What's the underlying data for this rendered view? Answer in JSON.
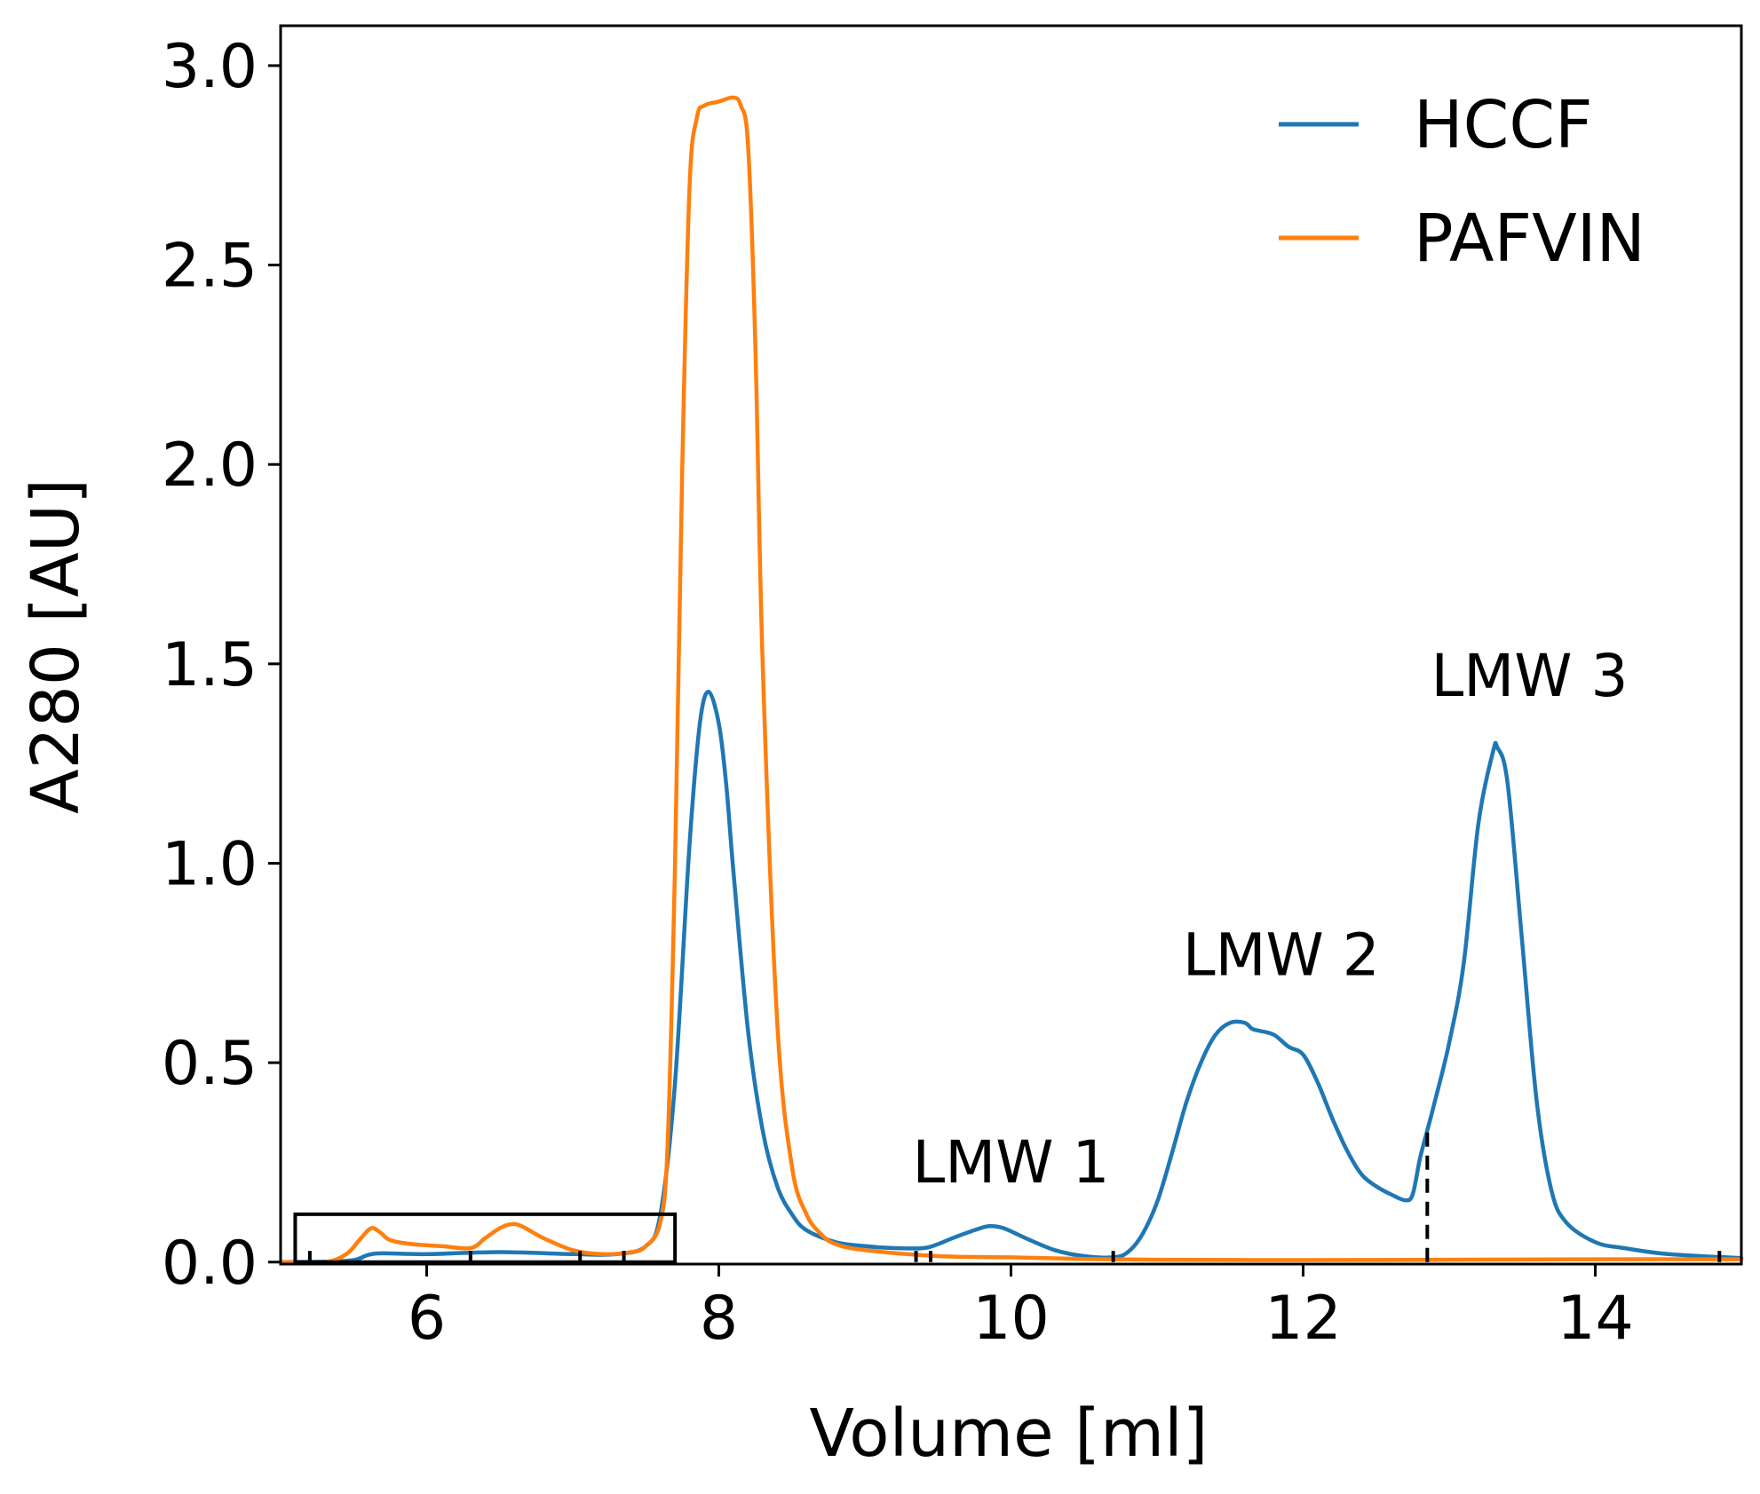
{
  "chart_data": {
    "type": "line",
    "xlabel": "Volume [ml]",
    "ylabel": "A280 [AU]",
    "xlim": [
      5.0,
      15.0
    ],
    "ylim": [
      -0.005,
      3.1
    ],
    "xticks": [
      6,
      8,
      10,
      12,
      14
    ],
    "xtick_labels": [
      "6",
      "8",
      "10",
      "12",
      "14"
    ],
    "yticks": [
      0.0,
      0.5,
      1.0,
      1.5,
      2.0,
      2.5,
      3.0
    ],
    "ytick_labels": [
      "0.0",
      "0.5",
      "1.0",
      "1.5",
      "2.0",
      "2.5",
      "3.0"
    ],
    "grid": false,
    "legend_position": "top-right",
    "series": [
      {
        "name": "HCCF",
        "color": "#1f77b4",
        "x": [
          5.0,
          5.3,
          5.5,
          5.6,
          5.7,
          6.0,
          6.5,
          7.0,
          7.3,
          7.5,
          7.6,
          7.7,
          7.8,
          7.87,
          7.93,
          8.0,
          8.05,
          8.1,
          8.2,
          8.3,
          8.4,
          8.5,
          8.6,
          8.8,
          9.0,
          9.2,
          9.4,
          9.5,
          9.6,
          9.75,
          9.85,
          9.95,
          10.1,
          10.3,
          10.5,
          10.7,
          10.8,
          10.9,
          11.0,
          11.1,
          11.2,
          11.3,
          11.4,
          11.5,
          11.6,
          11.65,
          11.7,
          11.8,
          11.9,
          12.0,
          12.1,
          12.2,
          12.3,
          12.4,
          12.5,
          12.6,
          12.7,
          12.75,
          12.8,
          12.85,
          12.9,
          13.0,
          13.1,
          13.2,
          13.3,
          13.33,
          13.4,
          13.5,
          13.6,
          13.7,
          13.8,
          14.0,
          14.2,
          14.5,
          15.0
        ],
        "y": [
          0.0,
          0.001,
          0.005,
          0.018,
          0.022,
          0.02,
          0.025,
          0.02,
          0.02,
          0.04,
          0.12,
          0.45,
          1.05,
          1.35,
          1.43,
          1.35,
          1.2,
          0.98,
          0.58,
          0.33,
          0.19,
          0.12,
          0.08,
          0.05,
          0.04,
          0.035,
          0.035,
          0.045,
          0.06,
          0.08,
          0.09,
          0.085,
          0.06,
          0.03,
          0.015,
          0.012,
          0.025,
          0.07,
          0.15,
          0.27,
          0.4,
          0.5,
          0.57,
          0.6,
          0.6,
          0.585,
          0.58,
          0.57,
          0.54,
          0.52,
          0.45,
          0.36,
          0.28,
          0.22,
          0.19,
          0.17,
          0.155,
          0.17,
          0.26,
          0.33,
          0.4,
          0.55,
          0.75,
          1.1,
          1.28,
          1.29,
          1.2,
          0.8,
          0.4,
          0.18,
          0.1,
          0.05,
          0.035,
          0.02,
          0.01
        ]
      },
      {
        "name": "PAFVIN",
        "color": "#ff7f0e",
        "x": [
          5.0,
          5.3,
          5.45,
          5.55,
          5.62,
          5.68,
          5.75,
          5.9,
          6.1,
          6.3,
          6.4,
          6.5,
          6.58,
          6.65,
          6.8,
          7.0,
          7.2,
          7.4,
          7.5,
          7.6,
          7.65,
          7.7,
          7.75,
          7.8,
          7.85,
          7.9,
          8.0,
          8.1,
          8.15,
          8.2,
          8.25,
          8.3,
          8.4,
          8.5,
          8.6,
          8.7,
          8.8,
          9.0,
          9.5,
          10.0,
          10.5,
          11.0,
          12.0,
          13.0,
          14.0,
          15.0
        ],
        "y": [
          0.0,
          0.0,
          0.02,
          0.06,
          0.085,
          0.075,
          0.055,
          0.045,
          0.04,
          0.035,
          0.06,
          0.085,
          0.095,
          0.09,
          0.06,
          0.03,
          0.02,
          0.025,
          0.04,
          0.1,
          0.3,
          1.0,
          2.0,
          2.7,
          2.87,
          2.9,
          2.91,
          2.92,
          2.9,
          2.8,
          2.3,
          1.5,
          0.6,
          0.24,
          0.12,
          0.07,
          0.045,
          0.03,
          0.015,
          0.012,
          0.008,
          0.006,
          0.005,
          0.006,
          0.007,
          0.007
        ]
      }
    ],
    "annotations": [
      {
        "text": "LMW 1",
        "x": 10.0,
        "y": 0.2
      },
      {
        "text": "LMW 2",
        "x": 11.85,
        "y": 0.72
      },
      {
        "text": "LMW 3",
        "x": 13.55,
        "y": 1.42
      }
    ],
    "dashed_lines": [
      {
        "x": 12.85,
        "y0": 0.0,
        "y1": 0.33
      }
    ],
    "fraction_ticks": [
      5.2,
      6.3,
      7.05,
      7.35,
      9.35,
      9.45,
      10.7,
      14.85
    ],
    "inset_box": {
      "x0": 5.1,
      "x1": 7.7,
      "y0": 0.0,
      "y1": 0.12
    }
  }
}
